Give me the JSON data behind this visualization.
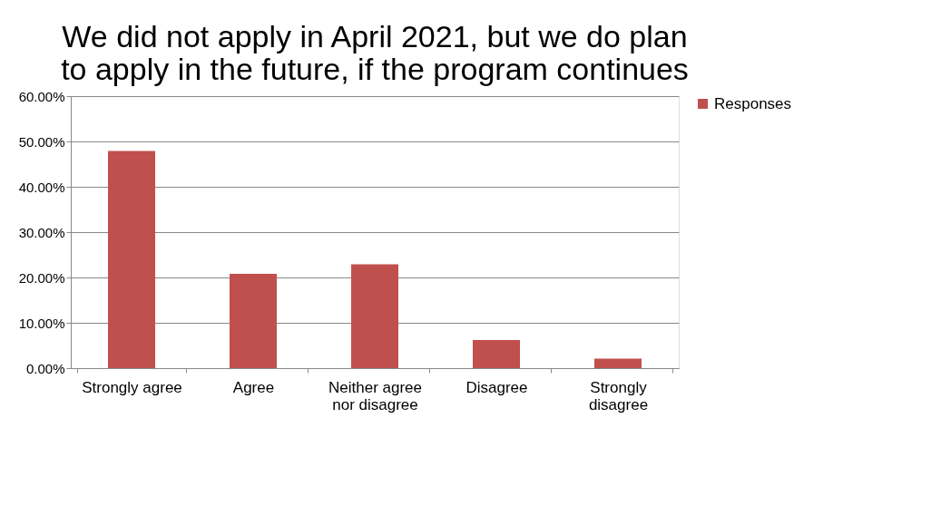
{
  "chart_data": {
    "type": "bar",
    "title": "We did not apply in April 2021, but we do plan to apply in the future, if the program continues",
    "categories": [
      "Strongly agree",
      "Agree",
      "Neither agree nor disagree",
      "Disagree",
      "Strongly disagree"
    ],
    "series": [
      {
        "name": "Responses",
        "color": "#c0504d",
        "values": [
          47.9,
          20.8,
          22.9,
          6.2,
          2.1
        ]
      }
    ],
    "ylim": [
      0,
      60
    ],
    "yticks": [
      {
        "value": 0,
        "label": "0.00%"
      },
      {
        "value": 10,
        "label": "10.00%"
      },
      {
        "value": 20,
        "label": "20.00%"
      },
      {
        "value": 30,
        "label": "30.00%"
      },
      {
        "value": 40,
        "label": "40.00%"
      },
      {
        "value": 50,
        "label": "50.00%"
      },
      {
        "value": 60,
        "label": "60.00%"
      }
    ],
    "grid": "y",
    "legend": "right"
  }
}
